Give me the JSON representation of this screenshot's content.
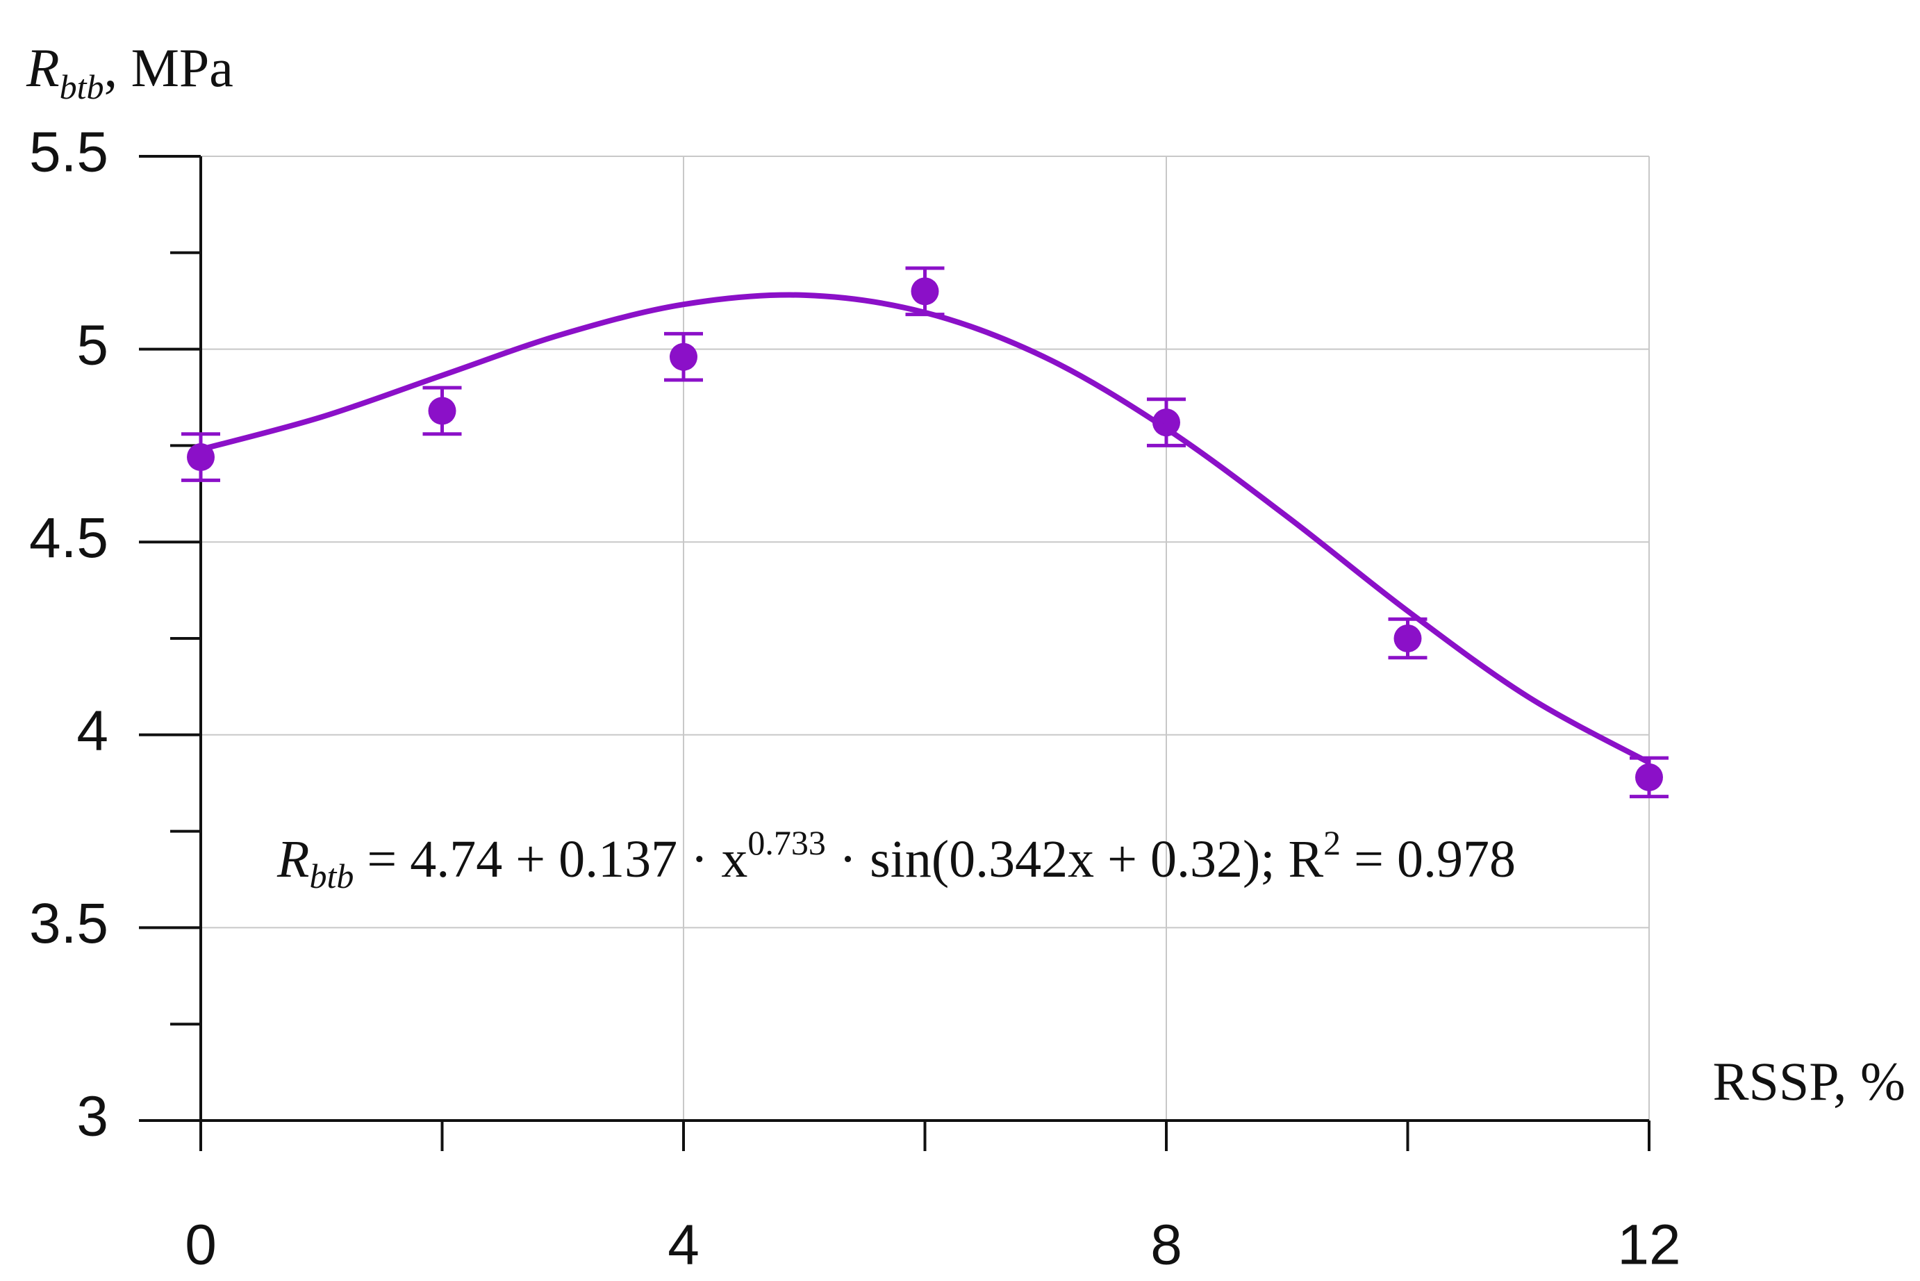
{
  "chart_data": {
    "type": "scatter",
    "ylabel": {
      "symbol": "R",
      "subscript": "btb",
      "rest": ", MPa"
    },
    "xlabel": "RSSP, %",
    "xlim": [
      0,
      12
    ],
    "xticks": [
      0,
      4,
      8,
      12
    ],
    "x_minor_ticks": [
      2,
      6,
      10
    ],
    "ylim": [
      3,
      5.5
    ],
    "yticks": [
      3,
      3.5,
      4,
      4.5,
      5,
      5.5
    ],
    "y_minor_ticks": [
      3.25,
      3.75,
      4.25,
      4.75,
      5.25
    ],
    "grid": true,
    "series": [
      {
        "type": "scatter",
        "color": "#8b10c8",
        "x": [
          0,
          2,
          4,
          6,
          8,
          10,
          12
        ],
        "values": [
          4.72,
          4.84,
          4.98,
          5.15,
          4.81,
          4.25,
          3.89
        ],
        "errors": [
          0.06,
          0.06,
          0.06,
          0.06,
          0.06,
          0.05,
          0.05
        ]
      },
      {
        "type": "line",
        "color": "#8b10c8",
        "x": [
          0,
          1,
          2,
          3,
          4,
          5,
          6,
          7,
          8,
          9,
          10,
          11,
          12
        ],
        "values": [
          4.74,
          4.824,
          4.932,
          5.039,
          5.116,
          5.14,
          5.095,
          4.978,
          4.794,
          4.566,
          4.321,
          4.098,
          3.928
        ]
      }
    ],
    "annotation": {
      "symbol": "R",
      "subscript": "btb",
      "body": " = 4.74 + 0.137 · x",
      "exponent": "0.733",
      "tail": " · sin(0.342x + 0.32);   R",
      "r2_exponent": "2",
      "r2_value": " = 0.978"
    }
  }
}
